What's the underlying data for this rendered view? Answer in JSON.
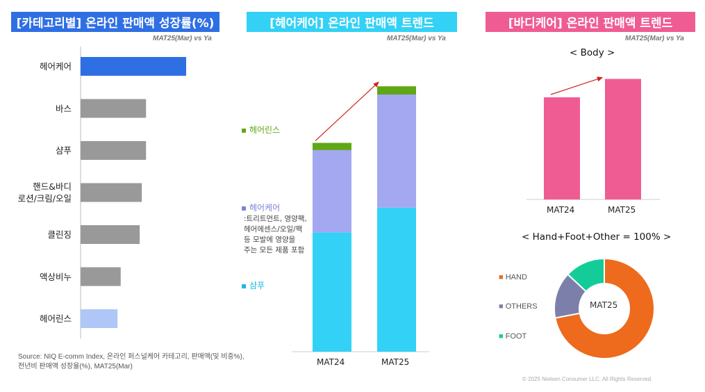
{
  "panels": {
    "left": {
      "title": "[카테고리별] 온라인 판매액 성장률(%)",
      "subtitle": "MAT25(Mar) vs Ya",
      "color": "#2f6fe4"
    },
    "middle": {
      "title": "[헤어케어] 온라인 판매액 트렌드",
      "subtitle": "MAT25(Mar) vs Ya",
      "color": "#33d1f5"
    },
    "right": {
      "title": "[바디케어] 온라인 판매액 트렌드",
      "subtitle": "MAT25(Mar) vs Ya",
      "color": "#ef5c93"
    }
  },
  "legend": {
    "rinse": "헤어린스",
    "haircare": "헤어케어",
    "haircare_note": [
      ":트리트먼트, 영양팩,",
      "헤어에센스/오일/팩",
      "등 모발에 영양을",
      "주는 모든 제품 포함"
    ],
    "shampoo": "샴푸"
  },
  "body_title": "< Body >",
  "donut_title": "< Hand+Foot+Other = 100% >",
  "donut_center": "MAT25",
  "source": [
    "Source: NIQ E-comm Index, 온라인 퍼스널케어 카테고리, 판매액(및 비중%),",
    "전년비 판매액 성장율(%), MAT25(Mar)"
  ],
  "copyright": "© 2025 Nielsen Consumer LLC. All Rights Reserved.",
  "chart_data": [
    {
      "type": "bar",
      "orientation": "horizontal",
      "title": "[카테고리별] 온라인 판매액 성장률(%)",
      "categories": [
        "헤어케어",
        "바스",
        "샴푸",
        "핸드&바디\n로션/크림/오일",
        "클린징",
        "액상비누",
        "헤어린스"
      ],
      "values": [
        100,
        62,
        62,
        58,
        56,
        38,
        35
      ],
      "unit": "relative",
      "colors": [
        "#2f6fe4",
        "#999999",
        "#999999",
        "#999999",
        "#999999",
        "#999999",
        "#aec7f7"
      ]
    },
    {
      "type": "bar",
      "stacked": true,
      "title": "[헤어케어] 온라인 판매액 트렌드",
      "categories": [
        "MAT24",
        "MAT25"
      ],
      "series": [
        {
          "name": "샴푸",
          "values": [
            58,
            70
          ],
          "color": "#33d1f5"
        },
        {
          "name": "헤어케어",
          "values": [
            40,
            55
          ],
          "color": "#a3a8f0"
        },
        {
          "name": "헤어린스",
          "values": [
            3.5,
            4
          ],
          "color": "#5fa716"
        }
      ],
      "trend_arrow": true
    },
    {
      "type": "bar",
      "title": "< Body >",
      "categories": [
        "MAT24",
        "MAT25"
      ],
      "values": [
        100,
        118
      ],
      "color": "#ef5c93",
      "trend_arrow": true
    },
    {
      "type": "pie",
      "donut": true,
      "title": "< Hand+Foot+Other = 100% >",
      "center_label": "MAT25",
      "labels": [
        "HAND",
        "OTHERS",
        "FOOT"
      ],
      "values": [
        72,
        15,
        13
      ],
      "colors": [
        "#ee6a1c",
        "#7b7fa9",
        "#14cc97"
      ]
    }
  ]
}
